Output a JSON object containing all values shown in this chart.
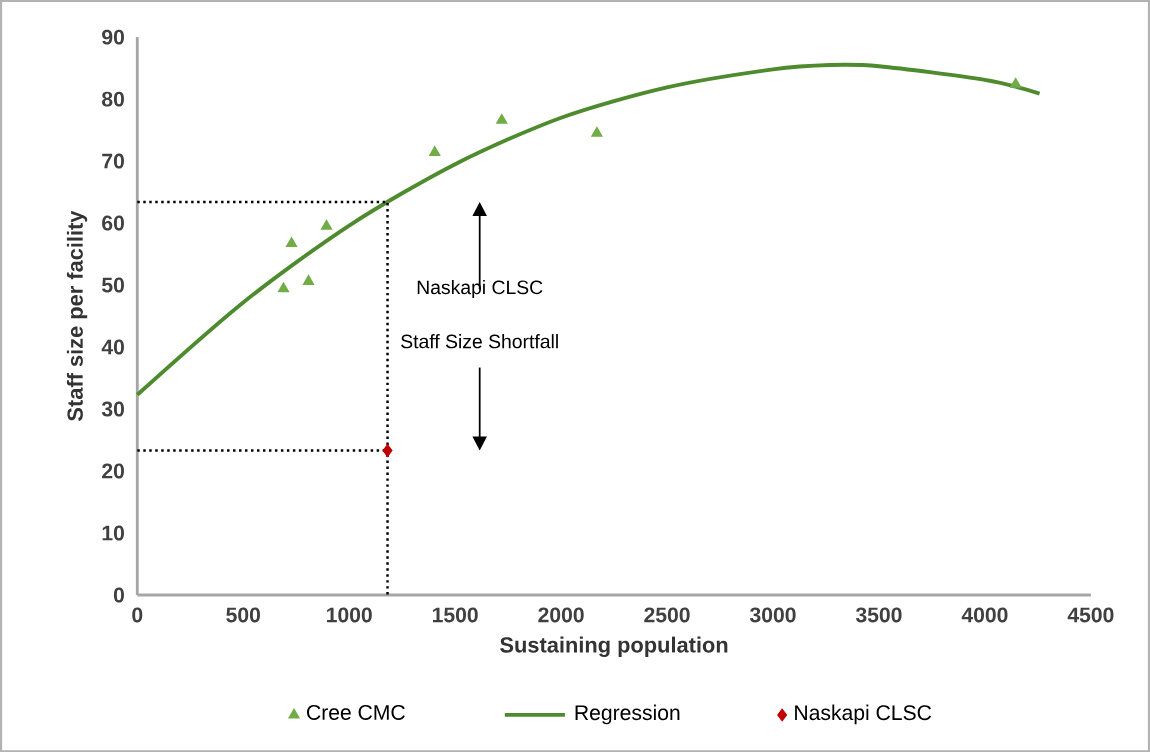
{
  "chart_data": {
    "type": "scatter",
    "xlabel": "Sustaining population",
    "ylabel": "Staff size per facility",
    "xlim": [
      0,
      4500
    ],
    "xticks": [
      0,
      500,
      1000,
      1500,
      2000,
      2500,
      3000,
      3500,
      4000,
      4500
    ],
    "ylim": [
      0,
      90
    ],
    "yticks": [
      0,
      10,
      20,
      30,
      40,
      50,
      60,
      70,
      80,
      90
    ],
    "grid": false,
    "legend": "bottom",
    "series": [
      {
        "name": "Cree CMC",
        "marker": "triangle",
        "color": "#70ad47",
        "x": [
          690,
          728,
          808,
          893,
          1404,
          1720,
          2169,
          4145
        ],
        "values": [
          49.4,
          56.7,
          50.6,
          59.5,
          71.4,
          76.6,
          74.5,
          82.4
        ]
      },
      {
        "name": "Regression",
        "type": "line",
        "marker": "none",
        "color": "#4e8a2e",
        "x": [
          0,
          500,
          1000,
          1500,
          2000,
          2500,
          3000,
          3270,
          3500,
          4000,
          4258
        ],
        "values": [
          32.3,
          47.2,
          59.6,
          69.5,
          77.0,
          81.9,
          84.8,
          85.5,
          85.3,
          83.1,
          80.9
        ]
      },
      {
        "name": "Naskapi CLSC",
        "marker": "diamond",
        "color": "#c00000",
        "x": [
          1181
        ],
        "values": [
          23.3
        ]
      },
      {
        "type": "line",
        "marker": "none",
        "line_style": "dotted",
        "color": "#000000",
        "x": [
          0,
          1181,
          1181
        ],
        "values": [
          63.4,
          63.4,
          0
        ]
      },
      {
        "type": "line",
        "marker": "none",
        "line_style": "dotted",
        "color": "#000000",
        "x": [
          0,
          1181
        ],
        "values": [
          23.3,
          23.3
        ]
      }
    ],
    "annotations": [
      "Naskapi CLSC",
      "Staff Size Shortfall"
    ]
  }
}
